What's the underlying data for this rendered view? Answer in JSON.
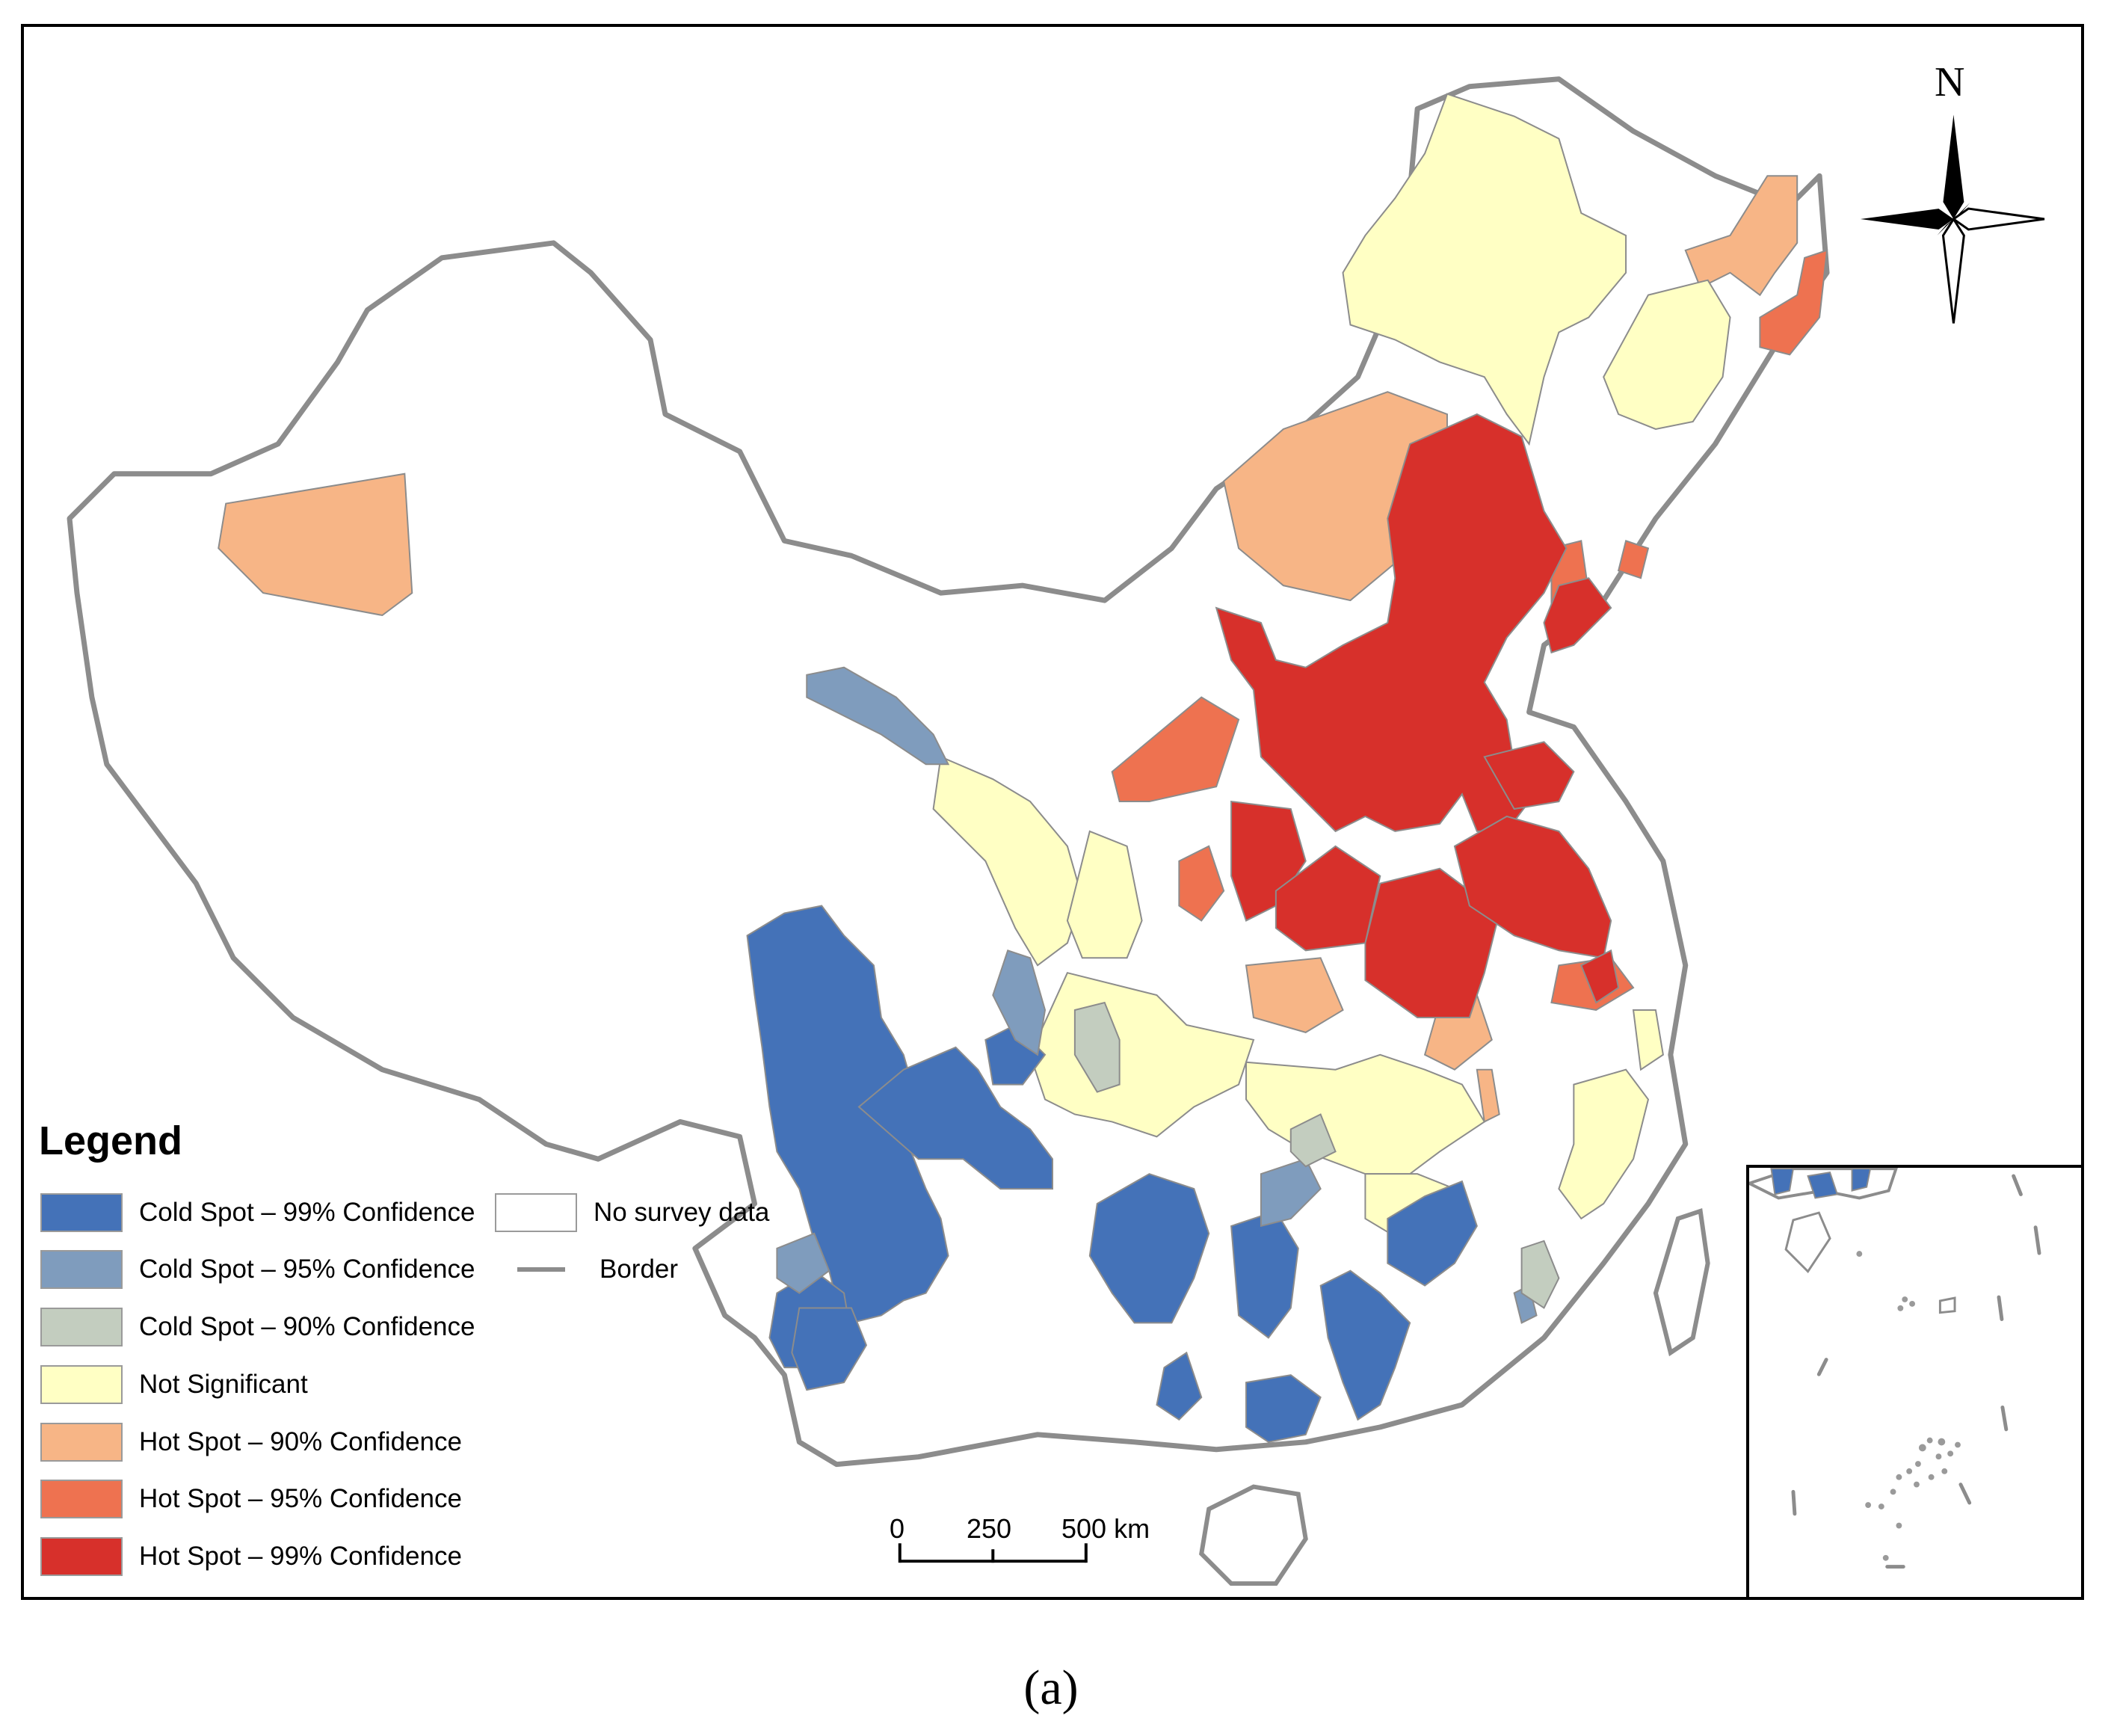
{
  "legend": {
    "title": "Legend",
    "items": [
      {
        "label": "Cold Spot – 99% Confidence",
        "color": "#4472b8"
      },
      {
        "label": "Cold Spot – 95% Confidence",
        "color": "#7f9cbd"
      },
      {
        "label": "Cold Spot – 90% Confidence",
        "color": "#c3cdbf"
      },
      {
        "label": "Not Significant",
        "color": "#ffffc4"
      },
      {
        "label": "Hot Spot – 90% Confidence",
        "color": "#f7b586"
      },
      {
        "label": "Hot Spot – 95% Confidence",
        "color": "#ee7250"
      },
      {
        "label": "Hot Spot – 99% Confidence",
        "color": "#d7302b"
      }
    ],
    "no_data": {
      "label": "No survey data",
      "color": "#ffffff"
    },
    "border": {
      "label": "Border",
      "color": "#8c8c8c"
    }
  },
  "scale_bar": {
    "labels": [
      "0",
      "250",
      "500 km"
    ]
  },
  "north_arrow": {
    "label": "N"
  },
  "caption": "(a)"
}
